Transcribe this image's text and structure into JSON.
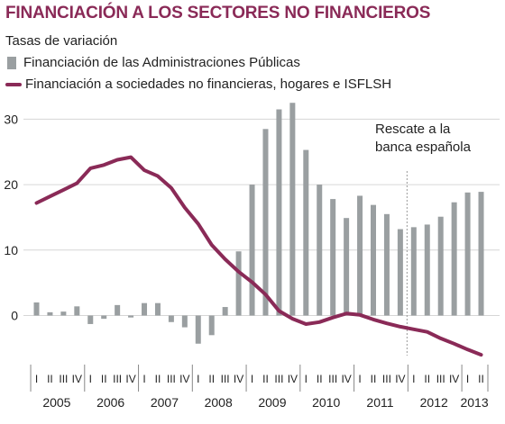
{
  "title": "FINANCIACIÓN A LOS SECTORES NO FINANCIEROS",
  "subtitle": "Tasas de variación",
  "legend": {
    "bars": "Financiación de las Administraciones Públicas",
    "line": "Financiación a sociedades no financieras, hogares e ISFLSH"
  },
  "annotation": {
    "line1": "Rescate a la",
    "line2": "banca española"
  },
  "colors": {
    "title": "#8a2a57",
    "line": "#8a2a57",
    "bars": "#9a9fa1",
    "grid": "#d6d6d6",
    "text": "#222222"
  },
  "chart_data": {
    "type": "bar",
    "title": "FINANCIACIÓN A LOS SECTORES NO FINANCIEROS",
    "subtitle": "Tasas de variación",
    "xlabel": "",
    "ylabel": "",
    "ylim": [
      -7,
      33
    ],
    "yticks": [
      0,
      10,
      20,
      30
    ],
    "grid": true,
    "legend_position": "top-left",
    "quarter_labels": [
      "I",
      "II",
      "III",
      "IV",
      "I",
      "II",
      "III",
      "IV",
      "I",
      "II",
      "III",
      "IV",
      "I",
      "II",
      "III",
      "IV",
      "I",
      "II",
      "III",
      "IV",
      "I",
      "II",
      "III",
      "IV",
      "I",
      "II",
      "III",
      "IV",
      "I",
      "II",
      "III",
      "IV",
      "I",
      "II"
    ],
    "years": [
      "2005",
      "2006",
      "2007",
      "2008",
      "2009",
      "2010",
      "2011",
      "2012",
      "2013"
    ],
    "series": [
      {
        "name": "Financiación de las Administraciones Públicas",
        "type": "bar",
        "values": [
          2.0,
          0.5,
          0.6,
          1.4,
          -1.3,
          -0.5,
          1.6,
          -0.3,
          1.9,
          1.9,
          -1.0,
          -1.8,
          -4.3,
          -3.0,
          1.3,
          9.8,
          20.0,
          28.5,
          31.5,
          32.5,
          25.3,
          20.0,
          17.8,
          14.9,
          18.3,
          16.9,
          15.5,
          13.2,
          13.5,
          13.9,
          15.1,
          17.3,
          18.8,
          18.9
        ]
      },
      {
        "name": "Financiación a sociedades no financieras, hogares e ISFLSH",
        "type": "line",
        "values": [
          17.2,
          18.2,
          19.2,
          20.2,
          22.5,
          23.0,
          23.8,
          24.2,
          22.2,
          21.3,
          19.5,
          16.5,
          14.0,
          10.8,
          8.6,
          6.7,
          5.1,
          3.2,
          0.7,
          -0.5,
          -1.3,
          -1.0,
          -0.3,
          0.3,
          0.1,
          -0.6,
          -1.2,
          -1.7,
          -2.1,
          -2.5,
          -3.5,
          -4.3,
          -5.2,
          -6.0
        ]
      }
    ],
    "annotations": [
      {
        "text": "Rescate a la banca española",
        "between_quarters": [
          27,
          28
        ]
      }
    ]
  }
}
